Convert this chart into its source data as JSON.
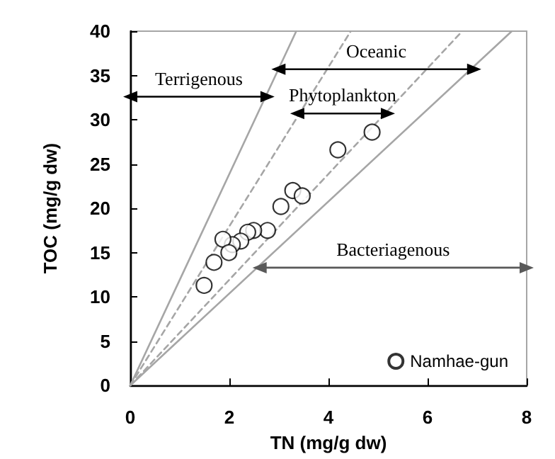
{
  "chart_data": {
    "type": "scatter",
    "xlabel": "TN (mg/g dw)",
    "ylabel": "TOC (mg/g dw)",
    "xlim": [
      0,
      8
    ],
    "xticks": [
      0,
      2,
      4,
      6,
      8
    ],
    "ylim": [
      0,
      40
    ],
    "yticks": [
      0,
      5,
      10,
      15,
      20,
      25,
      30,
      35,
      40
    ],
    "grid": false,
    "legend": "bottom right",
    "marker": "circle",
    "series": [
      {
        "name": "Namhae-gun",
        "color": "#000000",
        "x": [
          4.88,
          4.19,
          3.28,
          3.47,
          3.04,
          2.77,
          2.49,
          2.37,
          2.23,
          2.06,
          1.87,
          1.99,
          1.69,
          1.49
        ],
        "values": [
          28.6,
          26.6,
          22.0,
          21.4,
          20.2,
          17.5,
          17.5,
          17.3,
          16.3,
          15.9,
          16.5,
          15.0,
          13.9,
          11.3
        ]
      },
      {
        "type": "line",
        "color": "#a6a6a6",
        "line_style": "solid",
        "marker": "none",
        "x": [
          0,
          3.35
        ],
        "values": [
          0,
          40
        ]
      },
      {
        "type": "line",
        "color": "#a6a6a6",
        "line_style": "dashed",
        "marker": "none",
        "x": [
          0,
          4.45
        ],
        "values": [
          0,
          40
        ]
      },
      {
        "type": "line",
        "color": "#a6a6a6",
        "line_style": "dashed",
        "marker": "none",
        "x": [
          0,
          6.7
        ],
        "values": [
          0,
          40
        ]
      },
      {
        "type": "line",
        "color": "#a6a6a6",
        "line_style": "solid",
        "marker": "none",
        "x": [
          0,
          7.7
        ],
        "values": [
          0,
          40
        ]
      },
      {
        "type": "line",
        "color": "#000000",
        "line_style": "solid",
        "marker": "triangle",
        "x": [
          0,
          2.77
        ],
        "values": [
          32.6,
          32.6
        ]
      },
      {
        "type": "line",
        "color": "#000000",
        "line_style": "solid",
        "marker": "triangle",
        "x": [
          2.99,
          6.94
        ],
        "values": [
          35.7,
          35.7
        ]
      },
      {
        "type": "line",
        "color": "#000000",
        "line_style": "solid",
        "marker": "triangle",
        "x": [
          3.37,
          5.2
        ],
        "values": [
          30.7,
          30.7
        ]
      },
      {
        "type": "line",
        "color": "#595959",
        "line_style": "solid",
        "marker": "triangle",
        "x": [
          2.61,
          8
        ],
        "values": [
          13.3,
          13.3
        ]
      }
    ],
    "annotations": [
      "Terrigenous",
      "Oceanic",
      "Phytoplankton",
      "Bacteriagenous"
    ]
  }
}
